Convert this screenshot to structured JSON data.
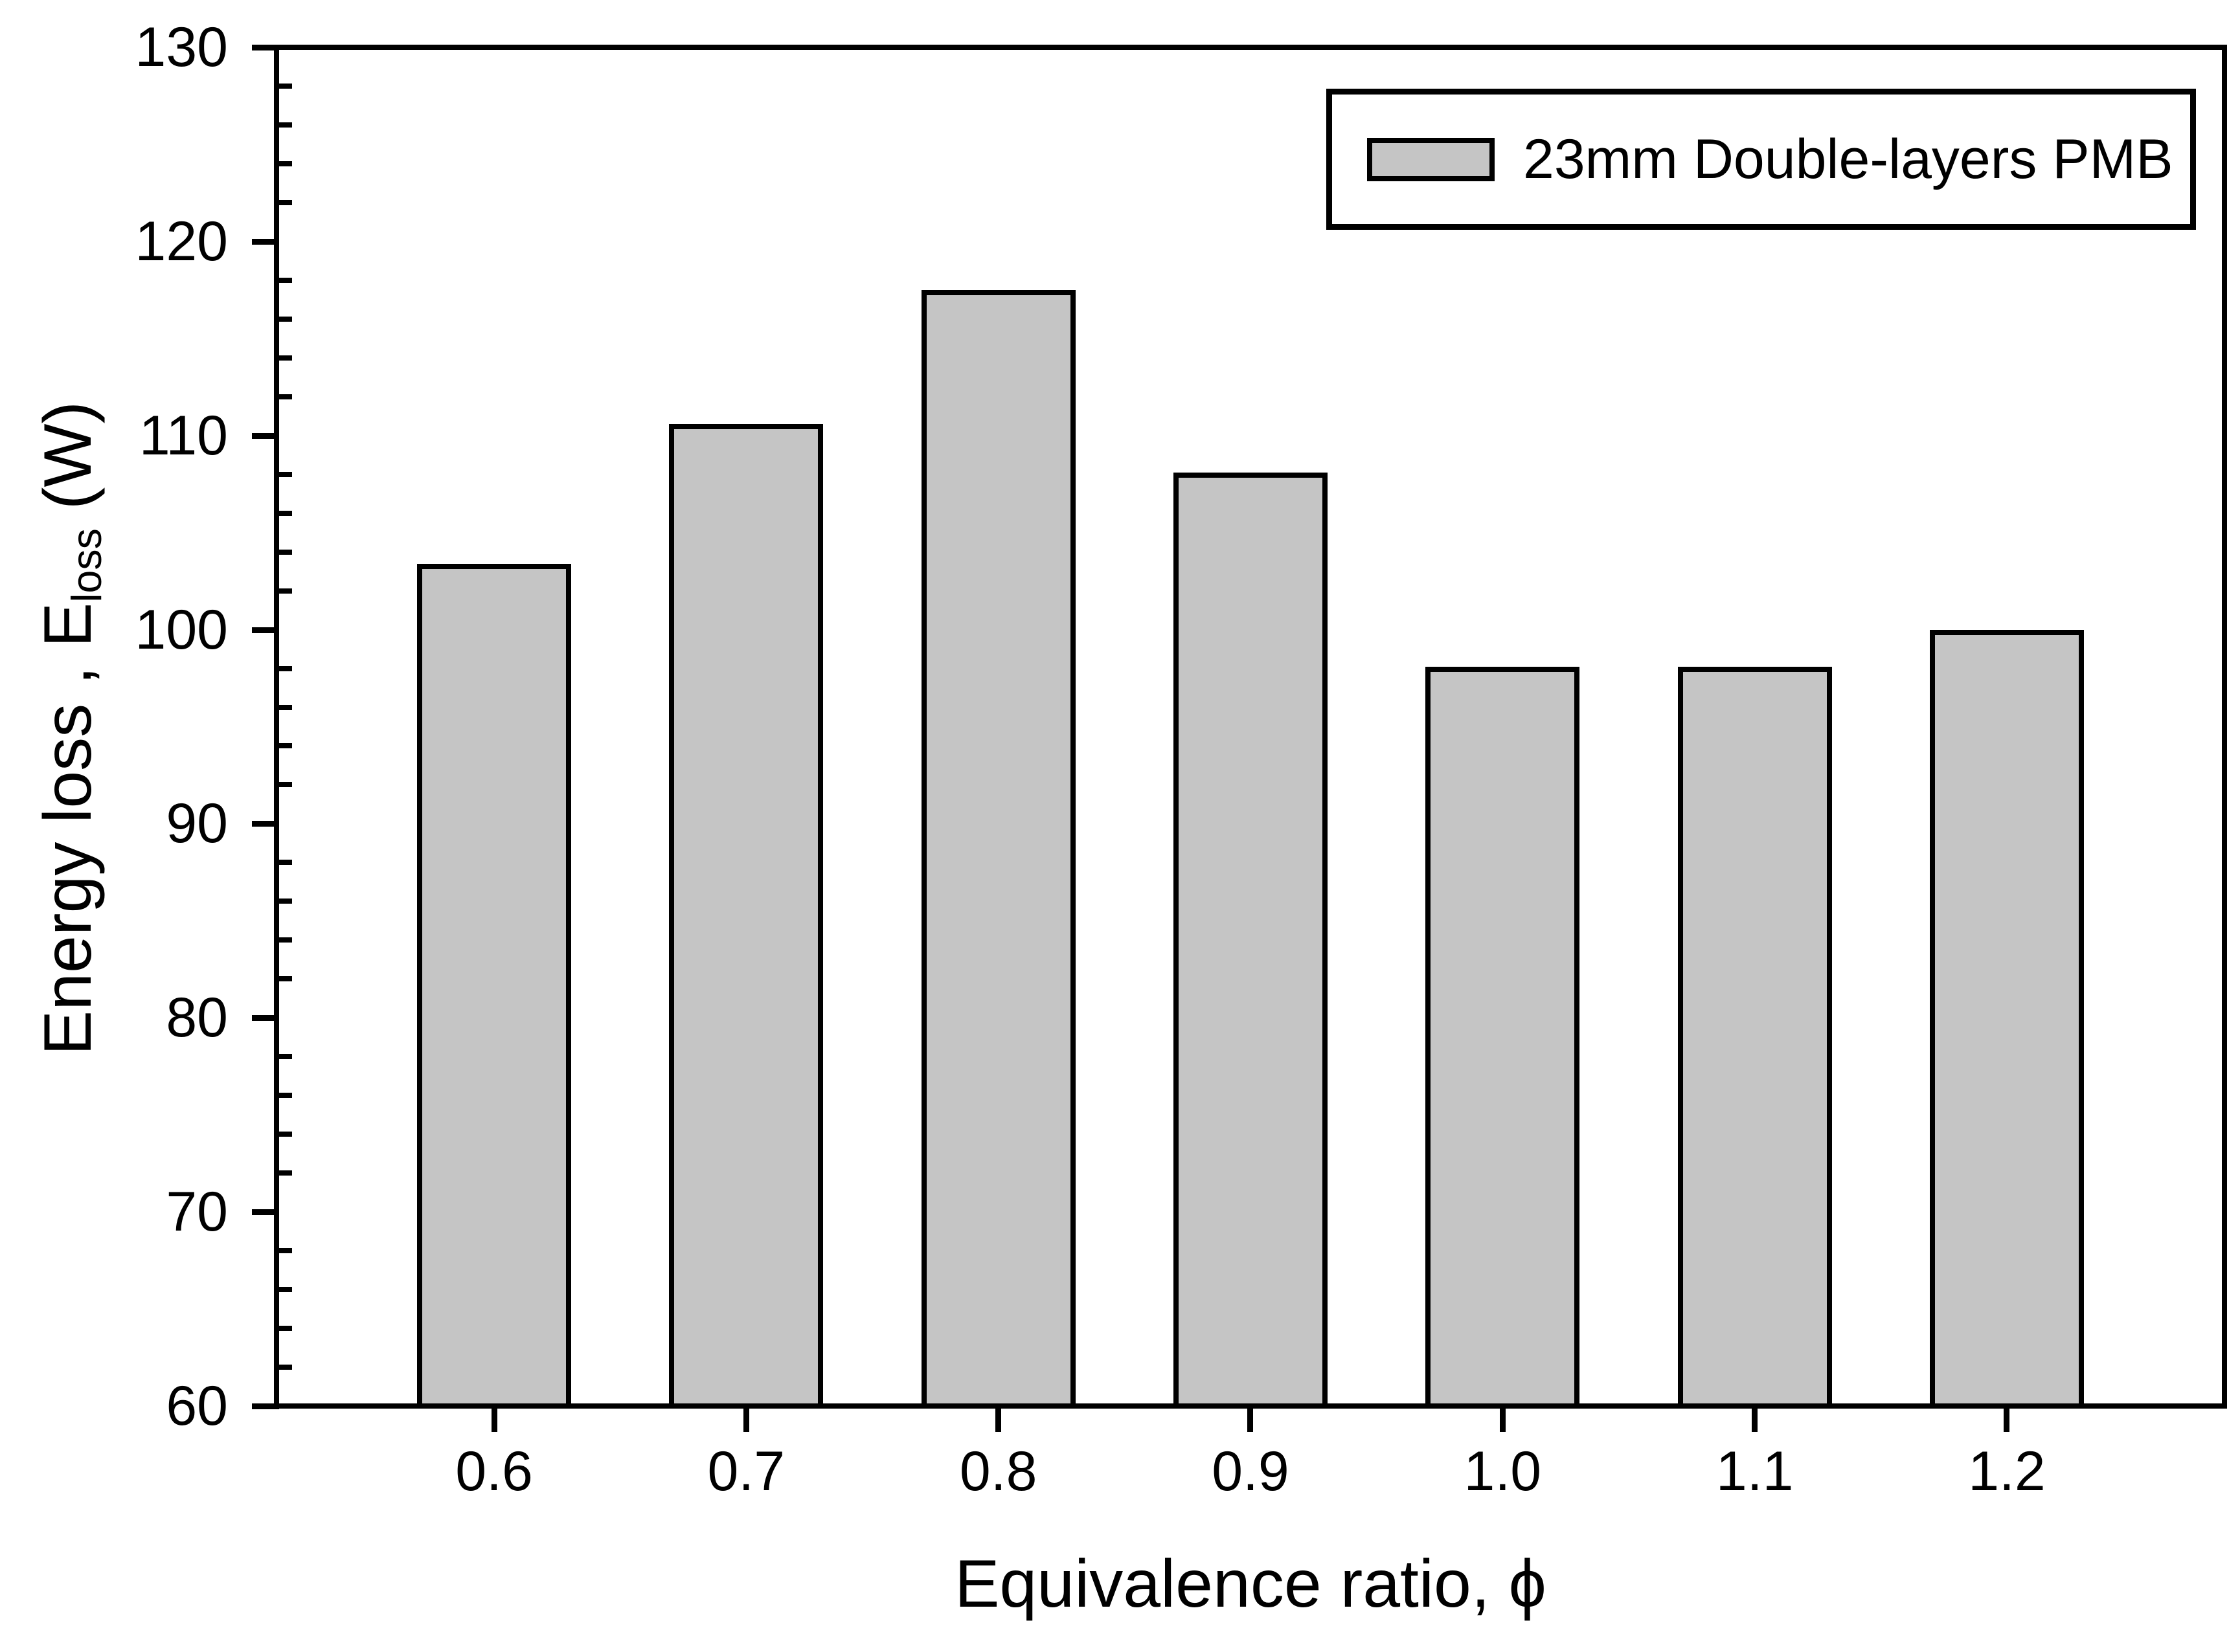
{
  "chart_data": {
    "type": "bar",
    "title": "",
    "categories": [
      "0.6",
      "0.7",
      "0.8",
      "0.9",
      "1.0",
      "1.1",
      "1.2"
    ],
    "values": [
      103.4,
      110.6,
      117.5,
      108.1,
      98.1,
      98.1,
      100.0
    ],
    "series_name": "23mm Double-layers PMB",
    "xlabel": "Equivalence ratio, ϕ",
    "ylabel": {
      "prefix": "Energy loss , E",
      "sub": "loss",
      "suffix": " (W)"
    },
    "ylim": [
      60,
      130
    ],
    "y_major_ticks": [
      60,
      70,
      80,
      90,
      100,
      110,
      120,
      130
    ],
    "y_minor_step": 2,
    "x_tick_labels": [
      "0.6",
      "0.7",
      "0.8",
      "0.9",
      "1.0",
      "1.1",
      "1.2"
    ],
    "grid": false,
    "legend_position": "top-right",
    "frame": "full-box",
    "colors": {
      "bar_fill": "#c5c5c5",
      "bar_border": "#000000",
      "axis": "#000000",
      "background": "#ffffff",
      "text": "#000000"
    }
  }
}
